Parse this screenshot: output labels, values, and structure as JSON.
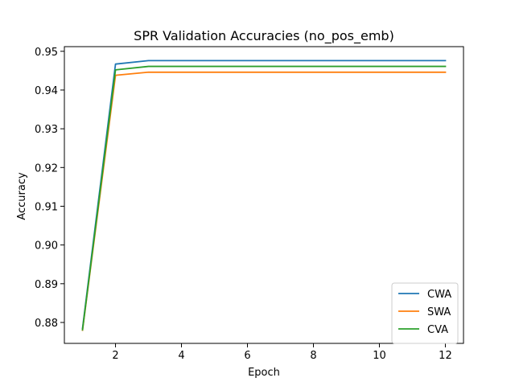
{
  "chart_data": {
    "type": "line",
    "title": "SPR Validation Accuracies (no_pos_emb)",
    "xlabel": "Epoch",
    "ylabel": "Accuracy",
    "x": [
      1,
      2,
      3,
      4,
      5,
      6,
      7,
      8,
      9,
      10,
      11,
      12
    ],
    "xlim": [
      0.45,
      12.55
    ],
    "ylim": [
      0.8746,
      0.9512
    ],
    "xticks": [
      2,
      4,
      6,
      8,
      10,
      12
    ],
    "xtick_labels": [
      "2",
      "4",
      "6",
      "8",
      "10",
      "12"
    ],
    "yticks": [
      0.88,
      0.89,
      0.9,
      0.91,
      0.92,
      0.93,
      0.94,
      0.95
    ],
    "ytick_labels": [
      "0.88",
      "0.89",
      "0.90",
      "0.91",
      "0.92",
      "0.93",
      "0.94",
      "0.95"
    ],
    "grid": false,
    "legend_position": "lower-right",
    "series": [
      {
        "name": "CWA",
        "color": "#1f77b4",
        "values": [
          0.8785,
          0.9467,
          0.9476,
          0.9476,
          0.9476,
          0.9476,
          0.9476,
          0.9476,
          0.9476,
          0.9476,
          0.9476,
          0.9476
        ]
      },
      {
        "name": "SWA",
        "color": "#ff7f0e",
        "values": [
          0.878,
          0.9438,
          0.9446,
          0.9446,
          0.9446,
          0.9446,
          0.9446,
          0.9446,
          0.9446,
          0.9446,
          0.9446,
          0.9446
        ]
      },
      {
        "name": "CVA",
        "color": "#2ca02c",
        "values": [
          0.8781,
          0.9452,
          0.9461,
          0.9461,
          0.9461,
          0.9461,
          0.9461,
          0.9461,
          0.9461,
          0.9461,
          0.9461,
          0.9461
        ]
      }
    ]
  }
}
